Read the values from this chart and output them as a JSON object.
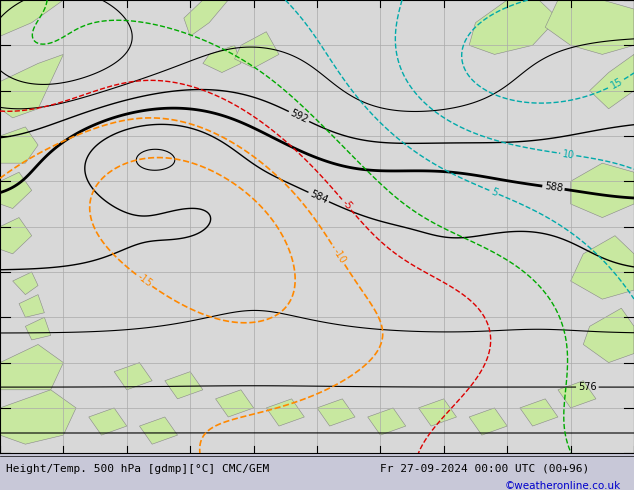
{
  "title_left": "Height/Temp. 500 hPa [gdmp][°C] CMC/GEM",
  "title_right": "Fr 27-09-2024 00:00 UTC (00+96)",
  "copyright": "©weatheronline.co.uk",
  "ocean_color": "#d8d8d8",
  "land_color": "#c8e8a0",
  "land_edge_color": "#888888",
  "footer_bg": "#c8c8d8",
  "footer_text_color": "#000000",
  "copyright_color": "#0000cc",
  "grid_color": "#aaaaaa",
  "black_color": "#000000",
  "red_color": "#dd0000",
  "orange_color": "#ff8800",
  "teal_color": "#00aaaa",
  "green_color": "#00aa00",
  "magenta_color": "#cc00cc",
  "gray_contour_color": "#aaaaaa"
}
